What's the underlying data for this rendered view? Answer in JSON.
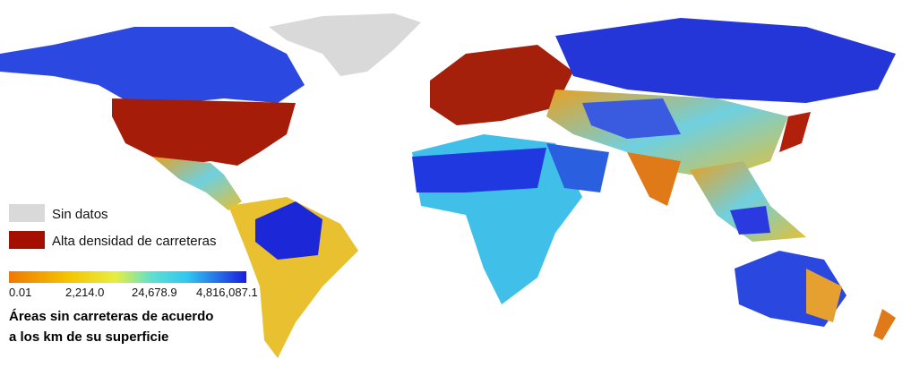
{
  "legend": {
    "items": [
      {
        "label": "Sin datos",
        "color": "#d9d9d9"
      },
      {
        "label": "Alta densidad de carreteras",
        "color": "#a50f00"
      }
    ]
  },
  "colorbar": {
    "ticks": [
      "0.01",
      "2,214.0",
      "24,678.9",
      "4,816,087.1"
    ]
  },
  "caption": {
    "lines": [
      "Áreas sin carreteras de acuerdo",
      "a los km de su superficie"
    ]
  }
}
